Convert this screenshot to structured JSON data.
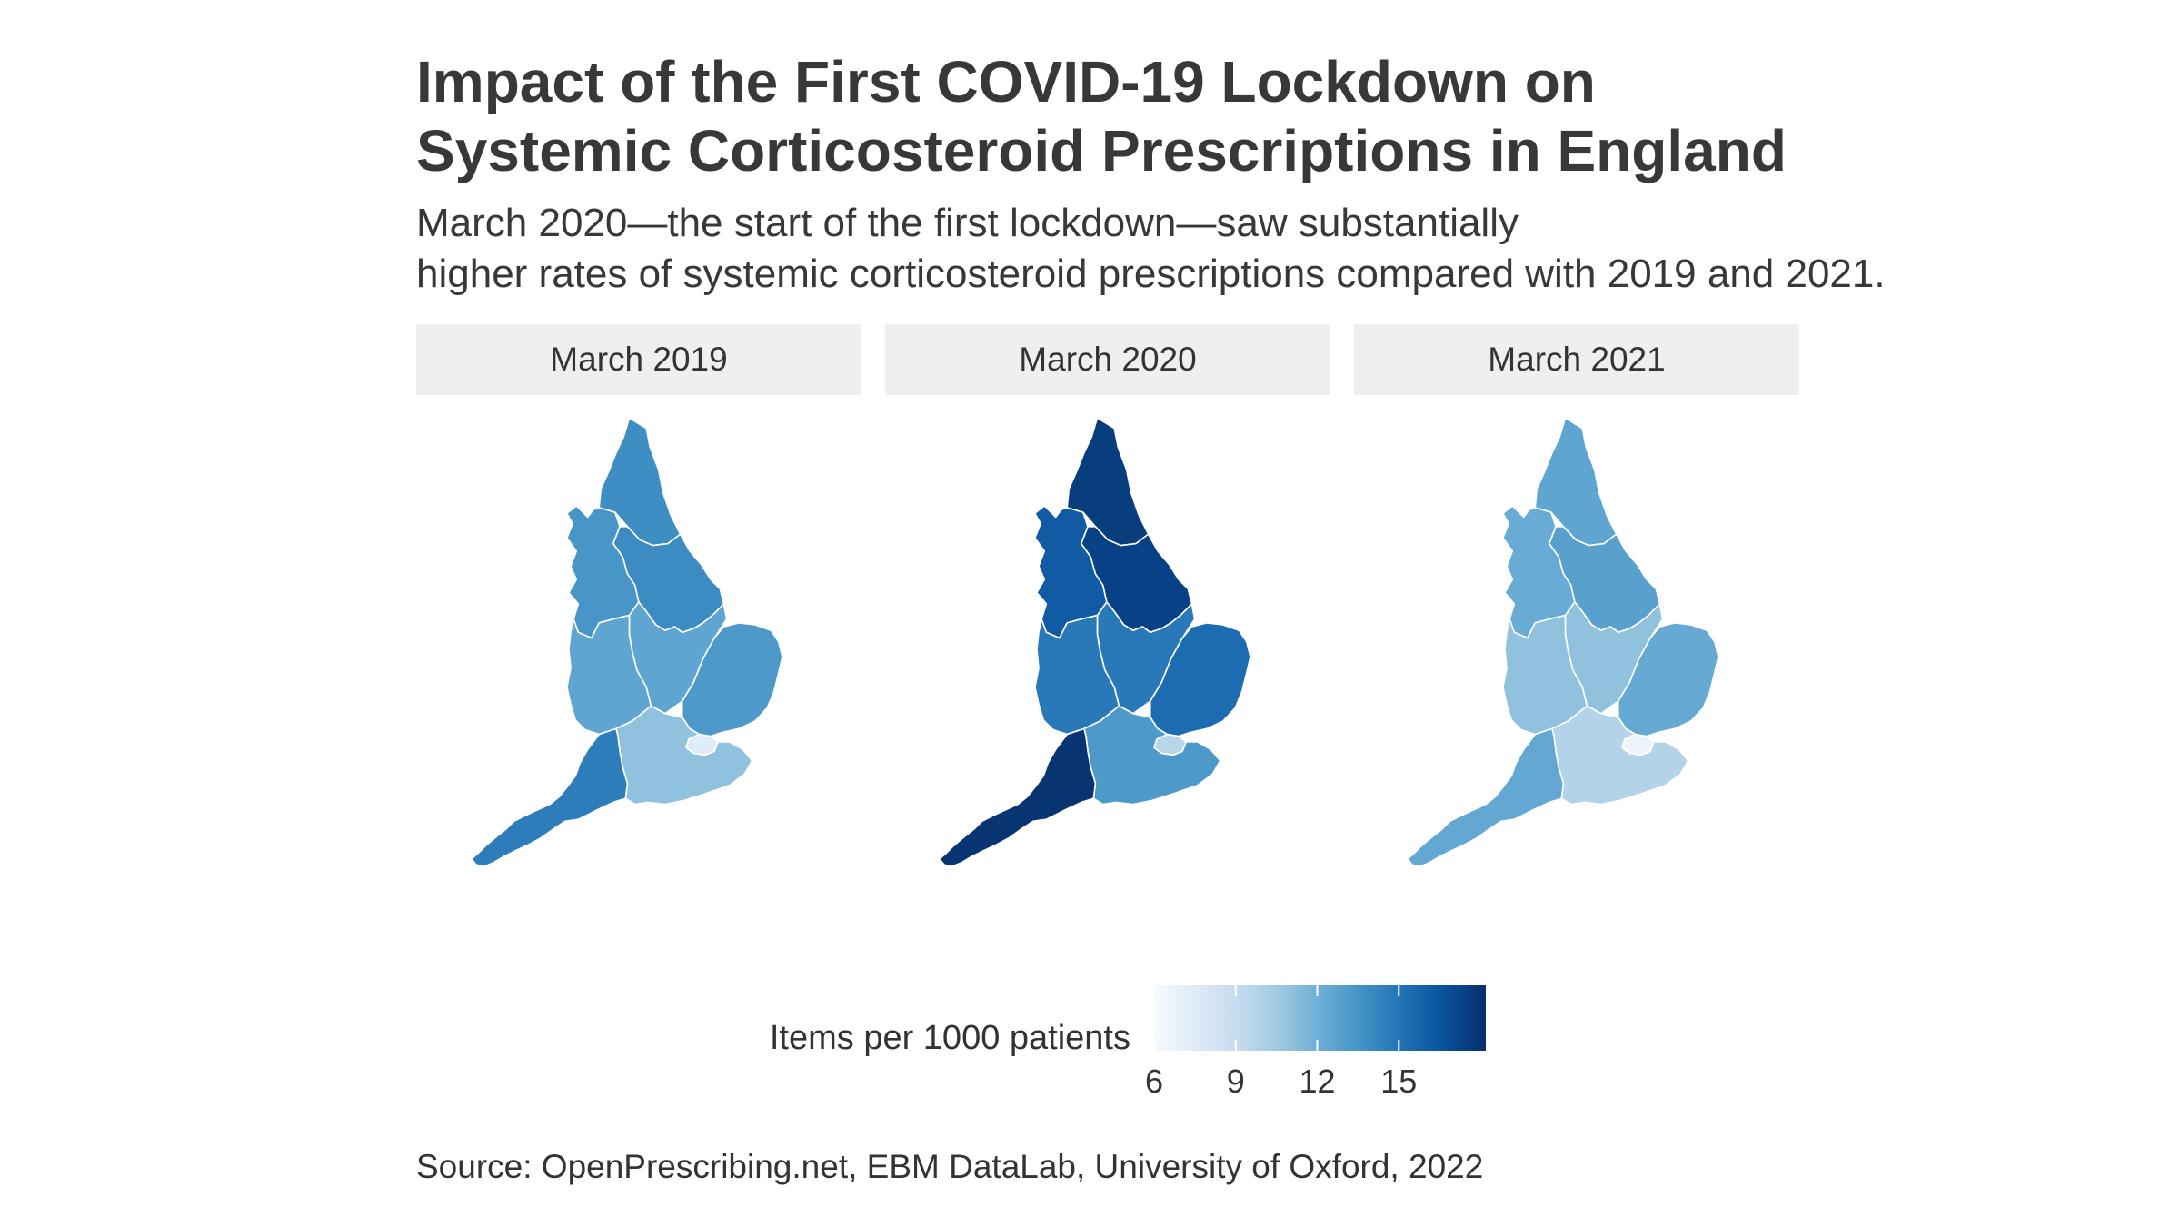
{
  "title_line1": "Impact of the First COVID-19 Lockdown on",
  "title_line2": "Systemic Corticosteroid Prescriptions in England",
  "subtitle_line1": "March 2020—the start of the first lockdown—saw substantially",
  "subtitle_line2": "higher rates of systemic corticosteroid prescriptions compared with 2019 and 2021.",
  "panels": [
    {
      "label": "March 2019",
      "regions": {
        "north_east": 13.8,
        "north_west": 13.4,
        "yorkshire": 13.9,
        "east_midlands": 12.6,
        "west_midlands": 12.6,
        "east_of_england": 13.2,
        "london": 7.4,
        "south_east": 11.0,
        "south_west": 14.6
      }
    },
    {
      "label": "March 2020",
      "regions": {
        "north_east": 17.6,
        "north_west": 16.2,
        "yorkshire": 17.4,
        "east_midlands": 14.8,
        "west_midlands": 14.8,
        "east_of_england": 15.4,
        "london": 9.6,
        "south_east": 13.2,
        "south_west": 18.0
      }
    },
    {
      "label": "March 2021",
      "regions": {
        "north_east": 12.6,
        "north_west": 12.2,
        "yorkshire": 12.8,
        "east_midlands": 11.0,
        "west_midlands": 11.0,
        "east_of_england": 12.3,
        "london": 6.6,
        "south_east": 9.8,
        "south_west": 12.4
      }
    }
  ],
  "legend": {
    "title": "Items per 1000 patients",
    "min": 6,
    "max": 18.2,
    "ticks": [
      6,
      9,
      12,
      15
    ],
    "tick_labels": [
      "6",
      "9",
      "12",
      "15"
    ],
    "colors": [
      "#f7fbff",
      "#deebf7",
      "#c6dbef",
      "#9ecae1",
      "#6baed6",
      "#4292c6",
      "#2171b5",
      "#08519c",
      "#08306b"
    ]
  },
  "source": "Source: OpenPrescribing.net, EBM DataLab, University of Oxford, 2022"
}
